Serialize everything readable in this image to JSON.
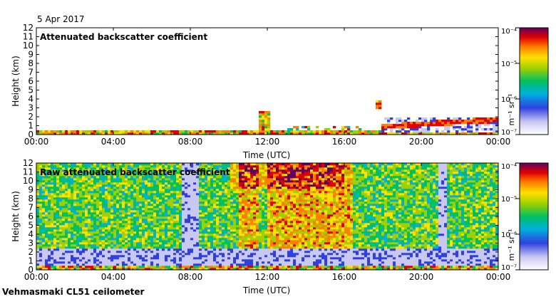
{
  "date": "5 Apr 2017",
  "instrument": "Vehmasmaki CL51 ceilometer",
  "colors": {
    "background": "#ffffff",
    "frame": "#000000"
  },
  "chart_data": [
    {
      "type": "heatmap",
      "title": "Attenuated backscatter coefficient",
      "xlabel": "Time (UTC)",
      "ylabel": "Height (km)",
      "xlim": [
        0,
        24
      ],
      "ylim": [
        0,
        12
      ],
      "xticks": [
        "00:00",
        "04:00",
        "08:00",
        "12:00",
        "16:00",
        "20:00",
        "00:00"
      ],
      "yticks": [
        "0",
        "1",
        "2",
        "3",
        "4",
        "5",
        "6",
        "7",
        "8",
        "9",
        "10",
        "11",
        "12"
      ],
      "colorbar": {
        "label": "m⁻¹ sr⁻¹",
        "scale": "log",
        "range": [
          1e-07,
          0.0001
        ],
        "ticks": [
          "10⁻⁷",
          "10⁻⁶",
          "10⁻⁵",
          "10⁻⁴"
        ]
      },
      "features": [
        {
          "kind": "surface-layer",
          "t_start": 0,
          "t_end": 18,
          "top_km": 0.5
        },
        {
          "kind": "cloud",
          "t_start": 11.6,
          "t_end": 12.2,
          "base_km": 0.3,
          "top_km": 2.7
        },
        {
          "kind": "cloud",
          "t_start": 17.6,
          "t_end": 18.0,
          "base_km": 2.8,
          "top_km": 3.9
        },
        {
          "kind": "layer",
          "t_start": 18,
          "t_end": 24,
          "base_km": 0.2,
          "top_km": 1.8
        }
      ]
    },
    {
      "type": "heatmap",
      "title": "Raw attenuated backscatter coefficient",
      "xlabel": "Time (UTC)",
      "ylabel": "Height (km)",
      "xlim": [
        0,
        24
      ],
      "ylim": [
        0,
        12
      ],
      "xticks": [
        "00:00",
        "04:00",
        "08:00",
        "12:00",
        "16:00",
        "20:00",
        "00:00"
      ],
      "yticks": [
        "0",
        "1",
        "2",
        "3",
        "4",
        "5",
        "6",
        "7",
        "8",
        "9",
        "10",
        "11",
        "12"
      ],
      "colorbar": {
        "label": "m⁻¹ sr⁻¹",
        "scale": "log",
        "range": [
          1e-07,
          0.0001
        ],
        "ticks": [
          "10⁻⁷",
          "10⁻⁶",
          "10⁻⁵",
          "10⁻⁴"
        ]
      }
    }
  ]
}
